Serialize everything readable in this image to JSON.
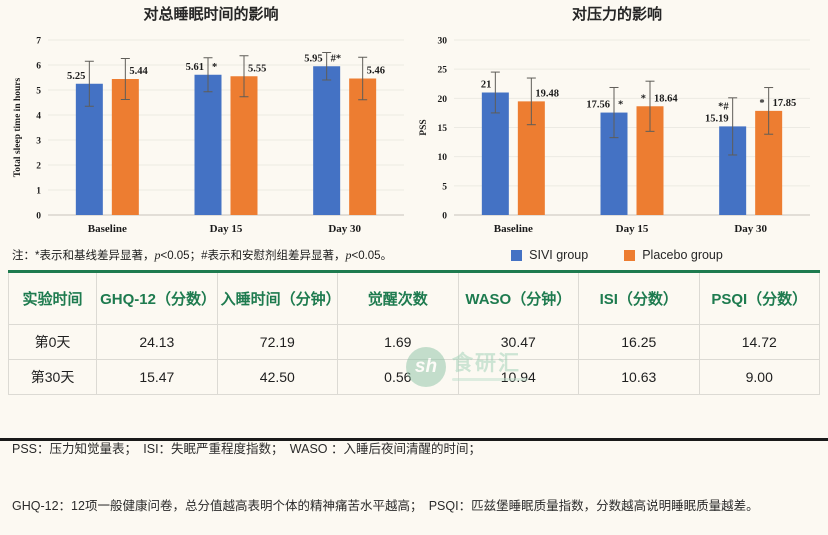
{
  "chart_data": [
    {
      "type": "bar",
      "title": "对总睡眠时间的影响",
      "xlabel": "",
      "ylabel": "Total sleep time in hours",
      "ylim": [
        0,
        7
      ],
      "ytick_step": 1,
      "grid": true,
      "legend_position": "none",
      "categories": [
        "Baseline",
        "Day 15",
        "Day 30"
      ],
      "series": [
        {
          "name": "SIVI group",
          "color": "#4472C4",
          "values": [
            5.25,
            5.61,
            5.95
          ],
          "labels": [
            "5.25",
            "5.61",
            "5.95"
          ],
          "markers": [
            "",
            "*",
            "#*"
          ],
          "marker_pos": [
            "",
            "after",
            "after"
          ],
          "errors": [
            0.9,
            0.68,
            0.55
          ]
        },
        {
          "name": "Placebo group",
          "color": "#ED7D31",
          "values": [
            5.44,
            5.55,
            5.46
          ],
          "labels": [
            "5.44",
            "5.55",
            "5.46"
          ],
          "markers": [
            "",
            "",
            ""
          ],
          "marker_pos": [
            "",
            "",
            ""
          ],
          "errors": [
            0.82,
            0.82,
            0.85
          ]
        }
      ]
    },
    {
      "type": "bar",
      "title": "对压力的影响",
      "xlabel": "",
      "ylabel": "PSS",
      "ylim": [
        0,
        30
      ],
      "ytick_step": 5,
      "grid": true,
      "legend_position": "below",
      "categories": [
        "Baseline",
        "Day 15",
        "Day 30"
      ],
      "series": [
        {
          "name": "SIVI group",
          "color": "#4472C4",
          "values": [
            21,
            17.56,
            15.19
          ],
          "labels": [
            "21",
            "17.56",
            "15.19"
          ],
          "markers": [
            "",
            "*",
            "*#"
          ],
          "marker_pos": [
            "",
            "after",
            "above"
          ],
          "errors": [
            3.5,
            4.3,
            4.9
          ]
        },
        {
          "name": "Placebo group",
          "color": "#ED7D31",
          "values": [
            19.48,
            18.64,
            17.85
          ],
          "labels": [
            "19.48",
            "18.64",
            "17.85"
          ],
          "markers": [
            "",
            "*",
            "*"
          ],
          "marker_pos": [
            "",
            "before",
            "before"
          ],
          "errors": [
            4.0,
            4.3,
            4.0
          ]
        }
      ]
    }
  ],
  "legend": {
    "items": [
      {
        "label": "SIVI group",
        "color": "#4472C4"
      },
      {
        "label": "Placebo group",
        "color": "#ED7D31"
      }
    ]
  },
  "chart_note": {
    "parts": [
      {
        "text": "注：*表示和基线差异显著，",
        "italic": false
      },
      {
        "text": "p",
        "italic": true
      },
      {
        "text": "<0.05；#表示和安慰剂组差异显著，",
        "italic": false
      },
      {
        "text": "p",
        "italic": true
      },
      {
        "text": "<0.05。",
        "italic": false
      }
    ]
  },
  "table": {
    "headers": [
      "实验时间",
      "GHQ-12（分数）",
      "入睡时间（分钟）",
      "觉醒次数",
      "WASO（分钟）",
      "ISI（分数）",
      "PSQI（分数）"
    ],
    "rows": [
      [
        "第0天",
        "24.13",
        "72.19",
        "1.69",
        "30.47",
        "16.25",
        "14.72"
      ],
      [
        "第30天",
        "15.47",
        "42.50",
        "0.56",
        "10.94",
        "10.63",
        "9.00"
      ]
    ]
  },
  "footnotes": {
    "line1": "PSS：压力知觉量表；　ISI：失眠严重程度指数；　WASO ：入睡后夜间清醒的时间；",
    "line2": "GHQ-12：12项一般健康问卷，总分值越高表明个体的精神痛苦水平越高；　PSQI：匹兹堡睡眠质量指数，分数越高说明睡眠质量越差。"
  },
  "watermark": {
    "monogram": "sh",
    "brand": "食研汇"
  },
  "colors": {
    "accent_green": "#1E7B4F",
    "bar_blue": "#4472C4",
    "bar_orange": "#ED7D31",
    "background": "#FCF9F2"
  }
}
